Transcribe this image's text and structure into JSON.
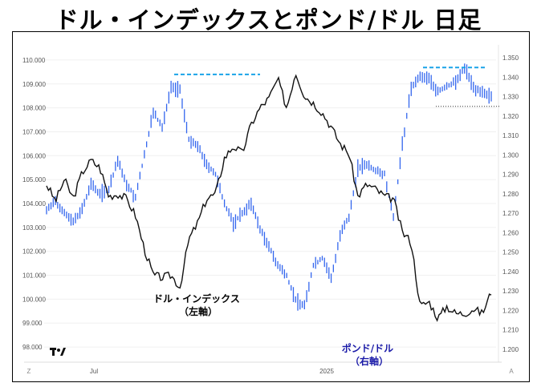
{
  "chart_data": {
    "type": "line",
    "title": "ドル・インデックスとポンド/ドル 日足",
    "x_ticks": [
      "Jul",
      "2025"
    ],
    "left_axis": {
      "label": "ドル・インデックス (左軸)",
      "ticks": [
        "110.000",
        "109.000",
        "108.000",
        "107.000",
        "106.000",
        "105.000",
        "104.000",
        "103.000",
        "102.000",
        "101.000",
        "100.000",
        "99.000",
        "98.000"
      ],
      "ylim": [
        97.5,
        110.5
      ]
    },
    "right_axis": {
      "label": "ポンド/ドル (右軸)",
      "ticks": [
        "1.350",
        "1.340",
        "1.330",
        "1.320",
        "1.310",
        "1.300",
        "1.290",
        "1.280",
        "1.270",
        "1.260",
        "1.250",
        "1.240",
        "1.230",
        "1.220",
        "1.210",
        "1.200"
      ],
      "ylim": [
        1.195,
        1.355
      ]
    },
    "annotations": {
      "dxy_line1": "ドル・インデックス",
      "dxy_line2": "（左軸）",
      "gbp_line1": "ポンド/ドル",
      "gbp_line2": "（右軸）"
    },
    "corner_labels": {
      "bottom_left": "Z",
      "bottom_right": "A"
    },
    "levels": {
      "dxy_high_dashed": 109.4,
      "gbp_high_dashed": 1.345,
      "gbp_dotted": 1.325
    },
    "series": [
      {
        "name": "ドル・インデックス",
        "axis": "left",
        "color": "#111111",
        "x": [
          0,
          0.02,
          0.04,
          0.06,
          0.08,
          0.1,
          0.12,
          0.14,
          0.16,
          0.18,
          0.2,
          0.22,
          0.24,
          0.26,
          0.28,
          0.3,
          0.32,
          0.34,
          0.36,
          0.38,
          0.4,
          0.42,
          0.44,
          0.46,
          0.48,
          0.5,
          0.52,
          0.54,
          0.56,
          0.58,
          0.6,
          0.62,
          0.64,
          0.66,
          0.68,
          0.7,
          0.72,
          0.74,
          0.76,
          0.78,
          0.8,
          0.82,
          0.84,
          0.86,
          0.88,
          0.9,
          0.92,
          0.94,
          0.96,
          0.98,
          1.0
        ],
        "y": [
          104.8,
          104.1,
          105.0,
          104.2,
          105.3,
          105.8,
          105.5,
          104.3,
          104.4,
          104.2,
          103.5,
          102.1,
          101.0,
          100.9,
          101.0,
          100.5,
          102.5,
          103.2,
          104.2,
          104.4,
          105.9,
          106.4,
          106.1,
          107.3,
          108.0,
          108.4,
          109.2,
          108.0,
          109.5,
          108.5,
          108.2,
          107.8,
          107.2,
          106.5,
          106.1,
          104.3,
          104.8,
          104.6,
          104.3,
          104.2,
          102.8,
          102.4,
          99.7,
          99.9,
          99.2,
          99.7,
          99.4,
          99.4,
          99.6,
          99.4,
          100.3
        ]
      },
      {
        "name": "ポンド/ドル",
        "axis": "right",
        "color": "#3366ee",
        "x": [
          0,
          0.02,
          0.04,
          0.06,
          0.08,
          0.1,
          0.12,
          0.14,
          0.16,
          0.18,
          0.2,
          0.22,
          0.24,
          0.26,
          0.28,
          0.3,
          0.32,
          0.34,
          0.36,
          0.38,
          0.4,
          0.42,
          0.44,
          0.46,
          0.48,
          0.5,
          0.52,
          0.54,
          0.56,
          0.58,
          0.6,
          0.62,
          0.64,
          0.66,
          0.68,
          0.7,
          0.72,
          0.74,
          0.76,
          0.78,
          0.8,
          0.82,
          0.84,
          0.86,
          0.88,
          0.9,
          0.92,
          0.94,
          0.96,
          0.98,
          1.0
        ],
        "y": [
          1.272,
          1.276,
          1.27,
          1.266,
          1.272,
          1.285,
          1.28,
          1.282,
          1.297,
          1.285,
          1.278,
          1.3,
          1.322,
          1.314,
          1.335,
          1.333,
          1.308,
          1.305,
          1.295,
          1.29,
          1.275,
          1.265,
          1.27,
          1.275,
          1.262,
          1.253,
          1.243,
          1.238,
          1.225,
          1.223,
          1.243,
          1.247,
          1.236,
          1.259,
          1.268,
          1.293,
          1.295,
          1.292,
          1.29,
          1.268,
          1.305,
          1.335,
          1.34,
          1.339,
          1.333,
          1.335,
          1.338,
          1.345,
          1.335,
          1.332,
          1.33
        ]
      }
    ],
    "watermark": "TV"
  }
}
